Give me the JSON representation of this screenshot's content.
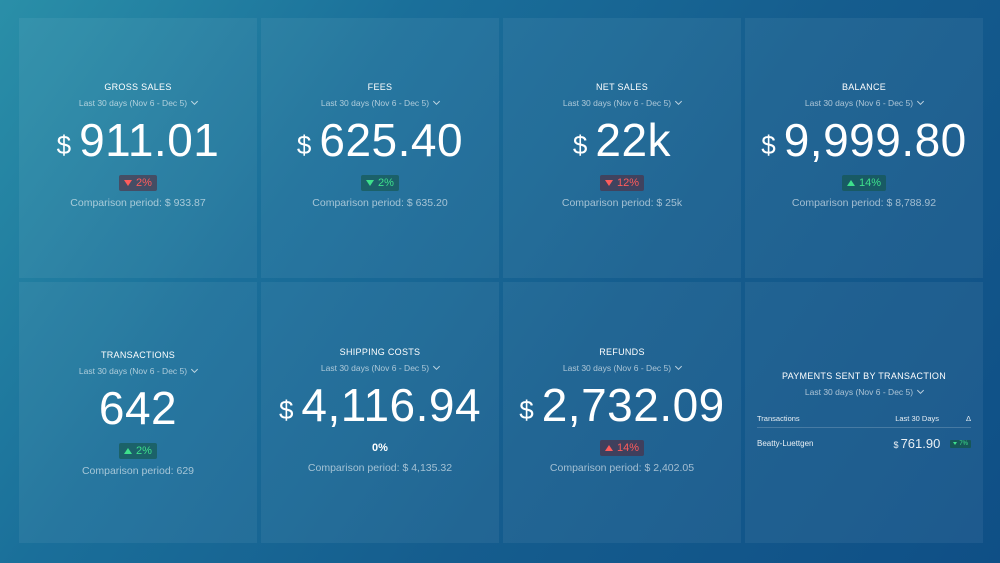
{
  "colors": {
    "background_start": "#2a8fa8",
    "background_end": "#0f4f86",
    "positive": "#3ee08c",
    "negative": "#ff5c5c"
  },
  "cards": [
    {
      "title": "GROSS SALES",
      "period": "Last 30 days (Nov 6 - Dec 5)",
      "currency": "$",
      "value": "911.01",
      "change": "2%",
      "change_direction": "down",
      "change_sentiment": "bad",
      "comparison": "Comparison period: $ 933.87"
    },
    {
      "title": "FEES",
      "period": "Last 30 days (Nov 6 - Dec 5)",
      "currency": "$",
      "value": "625.40",
      "change": "2%",
      "change_direction": "down",
      "change_sentiment": "good",
      "comparison": "Comparison period: $ 635.20"
    },
    {
      "title": "NET SALES",
      "period": "Last 30 days (Nov 6 - Dec 5)",
      "currency": "$",
      "value": "22k",
      "change": "12%",
      "change_direction": "down",
      "change_sentiment": "bad",
      "comparison": "Comparison period: $ 25k"
    },
    {
      "title": "BALANCE",
      "period": "Last 30 days (Nov 6 - Dec 5)",
      "currency": "$",
      "value": "9,999.80",
      "change": "14%",
      "change_direction": "up",
      "change_sentiment": "good",
      "comparison": "Comparison period: $ 8,788.92"
    },
    {
      "title": "TRANSACTIONS",
      "period": "Last 30 days (Nov 6 - Dec 5)",
      "currency": "",
      "value": "642",
      "change": "2%",
      "change_direction": "up",
      "change_sentiment": "good",
      "comparison": "Comparison period: 629"
    },
    {
      "title": "SHIPPING COSTS",
      "period": "Last 30 days (Nov 6 - Dec 5)",
      "currency": "$",
      "value": "4,116.94",
      "change": "0%",
      "change_direction": "none",
      "change_sentiment": "neutral",
      "comparison": "Comparison period: $ 4,135.32"
    },
    {
      "title": "REFUNDS",
      "period": "Last 30 days (Nov 6 - Dec 5)",
      "currency": "$",
      "value": "2,732.09",
      "change": "14%",
      "change_direction": "up",
      "change_sentiment": "bad",
      "comparison": "Comparison period: $ 2,402.05"
    }
  ],
  "payments_table": {
    "title": "PAYMENTS SENT BY TRANSACTION",
    "period": "Last 30 days (Nov 6 - Dec 5)",
    "columns": [
      "Transactions",
      "Last 30 Days",
      "Δ"
    ],
    "rows": [
      {
        "name": "Beatty-Luettgen",
        "currency": "$",
        "value": "761.90",
        "change": "7%",
        "change_direction": "down"
      }
    ]
  }
}
